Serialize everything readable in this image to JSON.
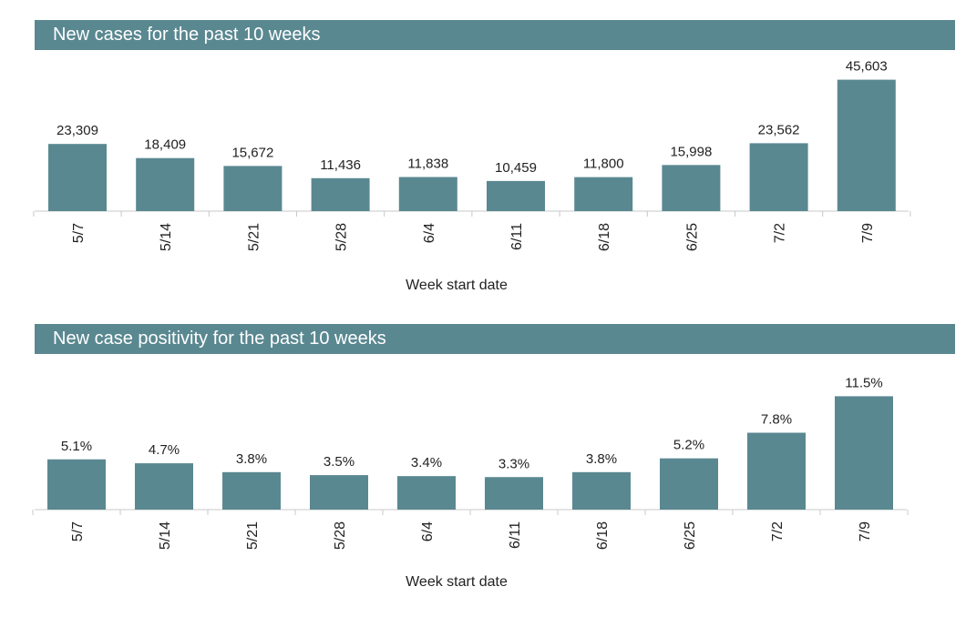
{
  "chart_data": [
    {
      "type": "bar",
      "title": "New cases for the past 10 weeks",
      "xlabel": "Week start date",
      "ylabel": "",
      "categories": [
        "5/7",
        "5/14",
        "5/21",
        "5/28",
        "6/4",
        "6/11",
        "6/18",
        "6/25",
        "7/2",
        "7/9"
      ],
      "values": [
        23309,
        18409,
        15672,
        11436,
        11838,
        10459,
        11800,
        15998,
        23562,
        45603
      ],
      "value_labels": [
        "23,309",
        "18,409",
        "15,672",
        "11,436",
        "11,838",
        "10,459",
        "11,800",
        "15,998",
        "23,562",
        "45,603"
      ],
      "ylim": [
        0,
        48000
      ],
      "grid": false,
      "bar_color": "#5a8891"
    },
    {
      "type": "bar",
      "title": "New case positivity for the past 10 weeks",
      "xlabel": "Week start date",
      "ylabel": "",
      "categories": [
        "5/7",
        "5/14",
        "5/21",
        "5/28",
        "6/4",
        "6/11",
        "6/18",
        "6/25",
        "7/2",
        "7/9"
      ],
      "values": [
        5.1,
        4.7,
        3.8,
        3.5,
        3.4,
        3.3,
        3.8,
        5.2,
        7.8,
        11.5
      ],
      "value_labels": [
        "5.1%",
        "4.7%",
        "3.8%",
        "3.5%",
        "3.4%",
        "3.3%",
        "3.8%",
        "5.2%",
        "7.8%",
        "11.5%"
      ],
      "ylim": [
        0,
        12
      ],
      "grid": false,
      "bar_color": "#5a8891"
    }
  ]
}
